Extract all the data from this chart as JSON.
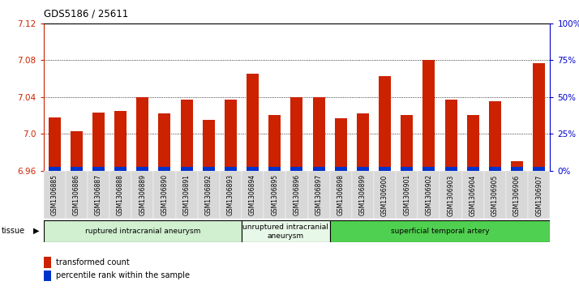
{
  "title": "GDS5186 / 25611",
  "samples": [
    "GSM1306885",
    "GSM1306886",
    "GSM1306887",
    "GSM1306888",
    "GSM1306889",
    "GSM1306890",
    "GSM1306891",
    "GSM1306892",
    "GSM1306893",
    "GSM1306894",
    "GSM1306895",
    "GSM1306896",
    "GSM1306897",
    "GSM1306898",
    "GSM1306899",
    "GSM1306900",
    "GSM1306901",
    "GSM1306902",
    "GSM1306903",
    "GSM1306904",
    "GSM1306905",
    "GSM1306906",
    "GSM1306907"
  ],
  "transformed_count": [
    7.018,
    7.003,
    7.023,
    7.025,
    7.04,
    7.022,
    7.037,
    7.015,
    7.037,
    7.065,
    7.02,
    7.04,
    7.04,
    7.017,
    7.022,
    7.063,
    7.02,
    7.08,
    7.037,
    7.02,
    7.035,
    6.97,
    7.077
  ],
  "percentile_rank": [
    3,
    2,
    6,
    6,
    6,
    5,
    5,
    7,
    4,
    8,
    7,
    5,
    5,
    5,
    6,
    6,
    5,
    8,
    6,
    5,
    5,
    4,
    8
  ],
  "y_min": 6.96,
  "y_max": 7.12,
  "y_ticks": [
    6.96,
    7.0,
    7.04,
    7.08,
    7.12
  ],
  "right_y_ticks": [
    0,
    25,
    50,
    75,
    100
  ],
  "right_y_labels": [
    "0%",
    "25%",
    "50%",
    "75%",
    "100%"
  ],
  "groups": [
    {
      "label": "ruptured intracranial aneurysm",
      "start": 0,
      "end": 9,
      "color": "#d0f0d0"
    },
    {
      "label": "unruptured intracranial\naneurysm",
      "start": 9,
      "end": 13,
      "color": "#e8f8e8"
    },
    {
      "label": "superficial temporal artery",
      "start": 13,
      "end": 23,
      "color": "#50d050"
    }
  ],
  "bar_color_red": "#cc2200",
  "bar_color_blue": "#0033cc",
  "bar_width": 0.55,
  "plot_bg_color": "#ffffff",
  "xtick_bg_color": "#d8d8d8",
  "tissue_label": "tissue",
  "legend_red_label": "transformed count",
  "legend_blue_label": "percentile rank within the sample",
  "title_color": "#000000",
  "left_axis_color": "#cc2200",
  "right_axis_color": "#0000cc"
}
